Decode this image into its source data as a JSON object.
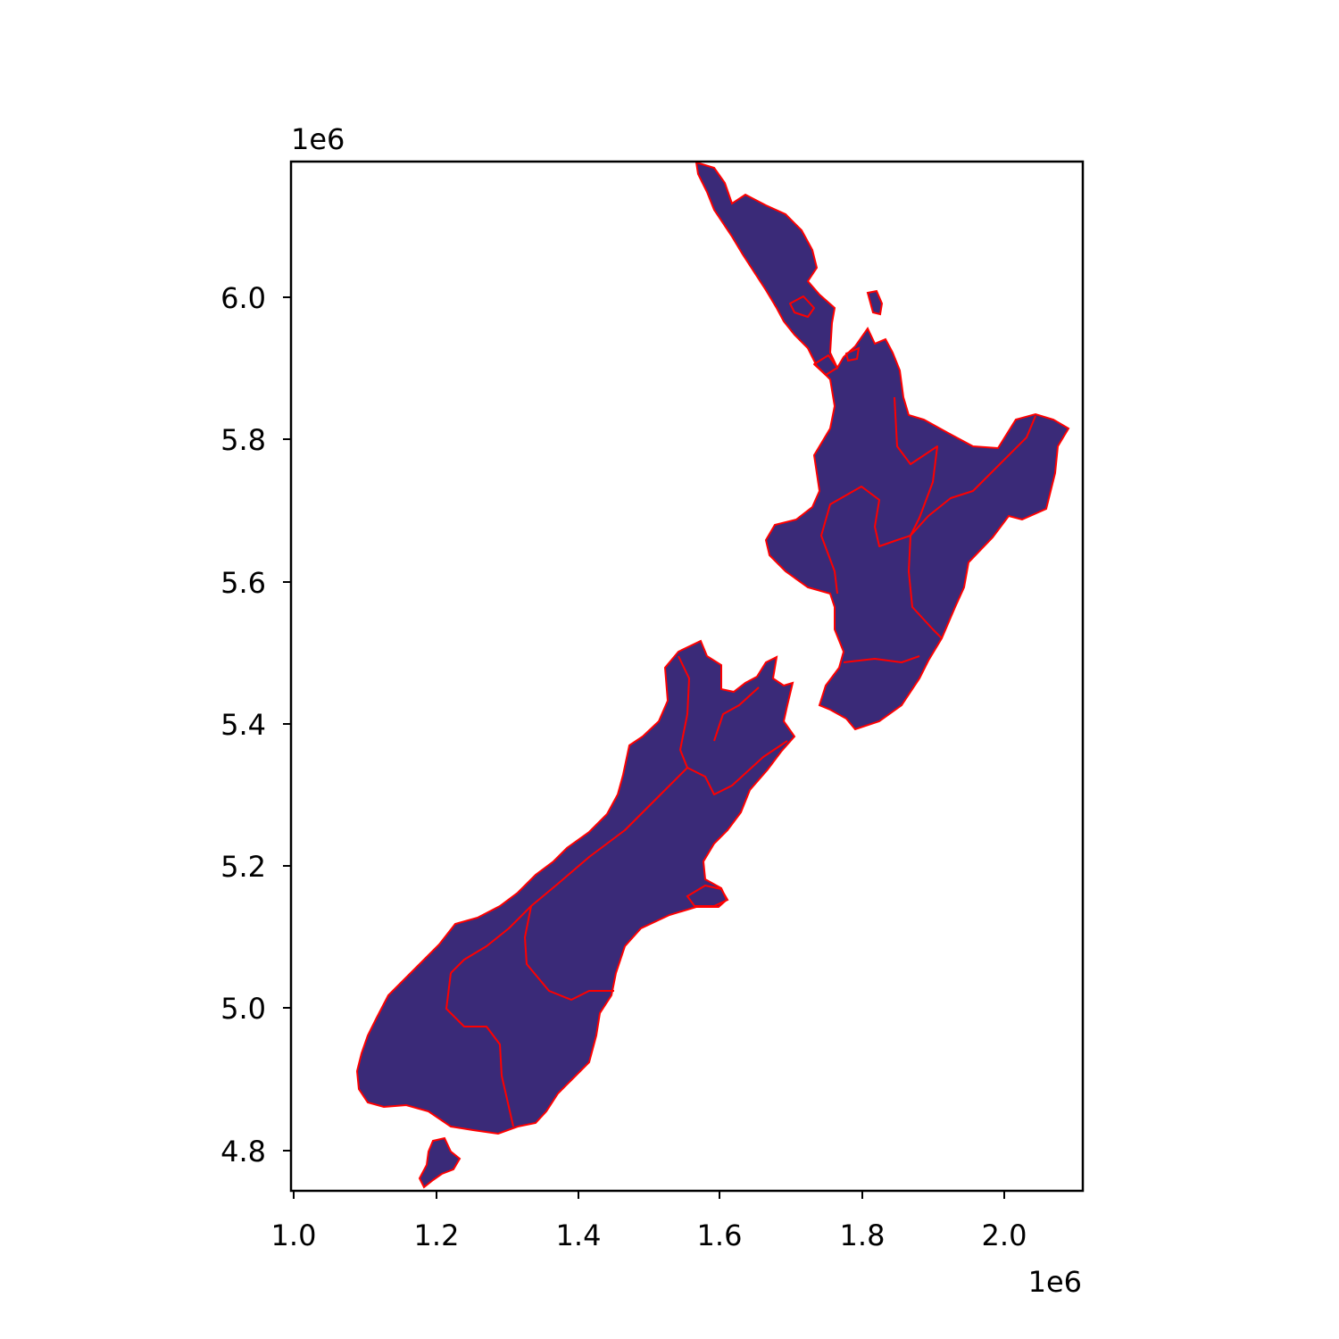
{
  "figure": {
    "x_offset_label": "1e6",
    "y_offset_label": "1e6"
  },
  "axes": {
    "x_ticks": [
      "1.0",
      "1.2",
      "1.4",
      "1.6",
      "1.8",
      "2.0"
    ],
    "y_ticks": [
      "6.0",
      "5.8",
      "5.6",
      "5.4",
      "5.2",
      "5.0",
      "4.8"
    ]
  },
  "map": {
    "fill_color": "#3a2a78",
    "highland_color": "#2c8a8c",
    "boundary_color": "#ff0000",
    "frame_color": "#000000"
  }
}
